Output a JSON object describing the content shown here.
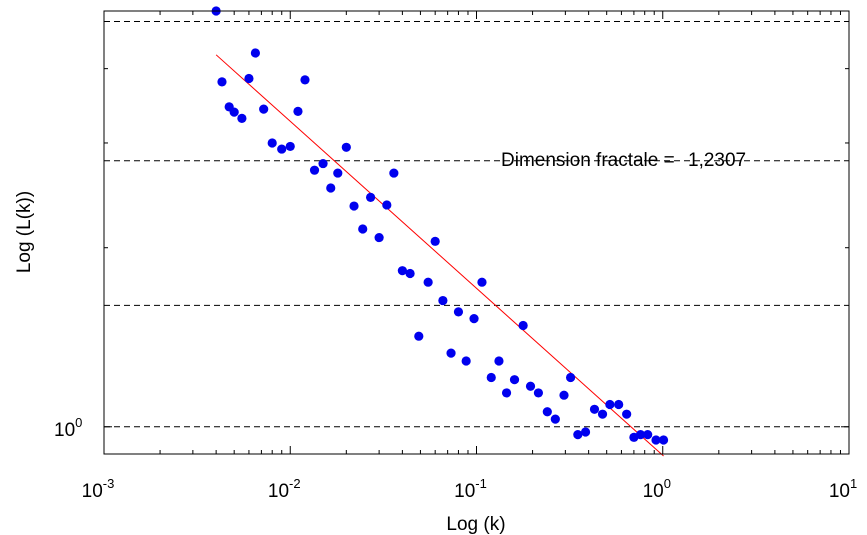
{
  "chart_data": {
    "type": "scatter",
    "xlabel": "Log (k)",
    "ylabel": "Log (L(k))",
    "x_scale": "log",
    "y_scale": "log",
    "xlim": [
      0.001,
      10
    ],
    "ylim": [
      0.9,
      5.0
    ],
    "grid": "horizontal-dashed",
    "x_ticks": [
      {
        "value": 0.001,
        "base": "10",
        "exp": "-3"
      },
      {
        "value": 0.01,
        "base": "10",
        "exp": "-2"
      },
      {
        "value": 0.1,
        "base": "10",
        "exp": "-1"
      },
      {
        "value": 1,
        "base": "10",
        "exp": "0"
      },
      {
        "value": 10,
        "base": "10",
        "exp": "1"
      }
    ],
    "y_ticks": [
      {
        "value": 1,
        "base": "10",
        "exp": "0"
      }
    ],
    "y_gridlines": [
      1,
      1.6,
      2.8,
      4.8
    ],
    "annotation": {
      "label": "Dimension fractale =",
      "value": "1,2307"
    },
    "colors": {
      "points": "#0000ee",
      "fit": "#ff0000",
      "grid": "#000000"
    },
    "series": [
      {
        "type": "scatter",
        "x": [
          0.004,
          0.0043,
          0.0047,
          0.005,
          0.0055,
          0.006,
          0.0065,
          0.0072,
          0.008,
          0.009,
          0.01,
          0.011,
          0.012,
          0.0135,
          0.015,
          0.0165,
          0.018,
          0.02,
          0.022,
          0.0245,
          0.027,
          0.03,
          0.033,
          0.036,
          0.04,
          0.044,
          0.049,
          0.055,
          0.06,
          0.066,
          0.073,
          0.08,
          0.088,
          0.097,
          0.107,
          0.12,
          0.132,
          0.145,
          0.16,
          0.178,
          0.195,
          0.215,
          0.24,
          0.265,
          0.295,
          0.32,
          0.35,
          0.385,
          0.43,
          0.475,
          0.52,
          0.58,
          0.64,
          0.7,
          0.76,
          0.83,
          0.92,
          1.01
        ],
        "y": [
          5.0,
          3.8,
          3.45,
          3.38,
          3.3,
          3.85,
          4.25,
          3.42,
          3.0,
          2.93,
          2.96,
          3.39,
          3.83,
          2.7,
          2.77,
          2.52,
          2.67,
          2.95,
          2.35,
          2.15,
          2.43,
          2.08,
          2.36,
          2.67,
          1.83,
          1.81,
          1.42,
          1.75,
          2.05,
          1.63,
          1.33,
          1.56,
          1.29,
          1.52,
          1.75,
          1.21,
          1.29,
          1.14,
          1.2,
          1.48,
          1.17,
          1.14,
          1.06,
          1.03,
          1.13,
          1.21,
          0.97,
          0.98,
          1.07,
          1.05,
          1.09,
          1.09,
          1.05,
          0.96,
          0.97,
          0.97,
          0.95,
          0.95
        ]
      },
      {
        "type": "line",
        "x": [
          0.004,
          1.01
        ],
        "y": [
          4.22,
          0.893
        ]
      }
    ]
  }
}
